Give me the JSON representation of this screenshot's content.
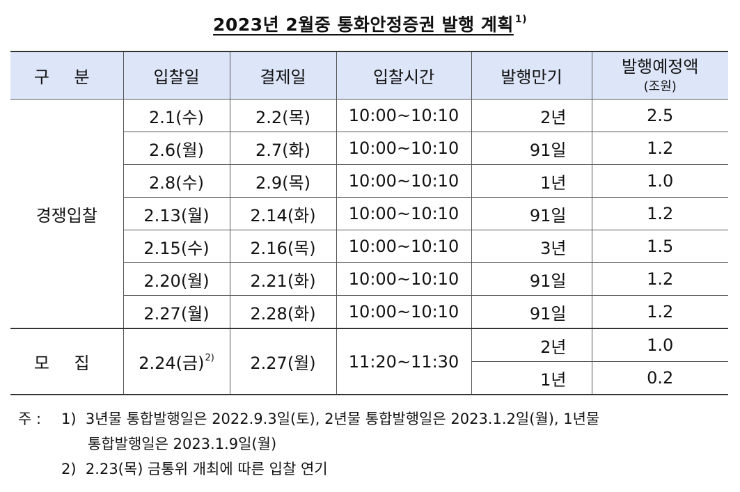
{
  "title": {
    "text": "2023년 2월중 통화안정증권 발행 계획",
    "note_mark": "1)"
  },
  "table": {
    "headers": {
      "category": "구 분",
      "bid_date": "입찰일",
      "settle_date": "결제일",
      "bid_time": "입찰시간",
      "maturity": "발행만기",
      "amount": "발행예정액",
      "amount_unit": "(조원)"
    },
    "competitive": {
      "label": "경쟁입찰",
      "rows": [
        {
          "bid_date": "2.1(수)",
          "settle_date": "2.2(목)",
          "bid_time": "10:00~10:10",
          "maturity": "2년",
          "amount": "2.5"
        },
        {
          "bid_date": "2.6(월)",
          "settle_date": "2.7(화)",
          "bid_time": "10:00~10:10",
          "maturity": "91일",
          "amount": "1.2"
        },
        {
          "bid_date": "2.8(수)",
          "settle_date": "2.9(목)",
          "bid_time": "10:00~10:10",
          "maturity": "1년",
          "amount": "1.0"
        },
        {
          "bid_date": "2.13(월)",
          "settle_date": "2.14(화)",
          "bid_time": "10:00~10:10",
          "maturity": "91일",
          "amount": "1.2"
        },
        {
          "bid_date": "2.15(수)",
          "settle_date": "2.16(목)",
          "bid_time": "10:00~10:10",
          "maturity": "3년",
          "amount": "1.5"
        },
        {
          "bid_date": "2.20(월)",
          "settle_date": "2.21(화)",
          "bid_time": "10:00~10:10",
          "maturity": "91일",
          "amount": "1.2"
        },
        {
          "bid_date": "2.27(월)",
          "settle_date": "2.28(화)",
          "bid_time": "10:00~10:10",
          "maturity": "91일",
          "amount": "1.2"
        }
      ]
    },
    "subscription": {
      "label": "모 집",
      "bid_date": "2.24(금)",
      "bid_date_note": "2)",
      "settle_date": "2.27(월)",
      "bid_time": "11:20~11:30",
      "rows": [
        {
          "maturity": "2년",
          "amount": "1.0"
        },
        {
          "maturity": "1년",
          "amount": "0.2"
        }
      ]
    }
  },
  "notes": {
    "prefix": "주 :",
    "note1_num": "1)",
    "note1_line1": "3년물 통합발행일은 2022.9.3일(토), 2년물 통합발행일은 2023.1.2일(월), 1년물",
    "note1_line2": "통합발행일은 2023.1.9일(월)",
    "note2_num": "2)",
    "note2_text": "2.23(목) 금통위 개최에 따른 입찰 연기"
  }
}
